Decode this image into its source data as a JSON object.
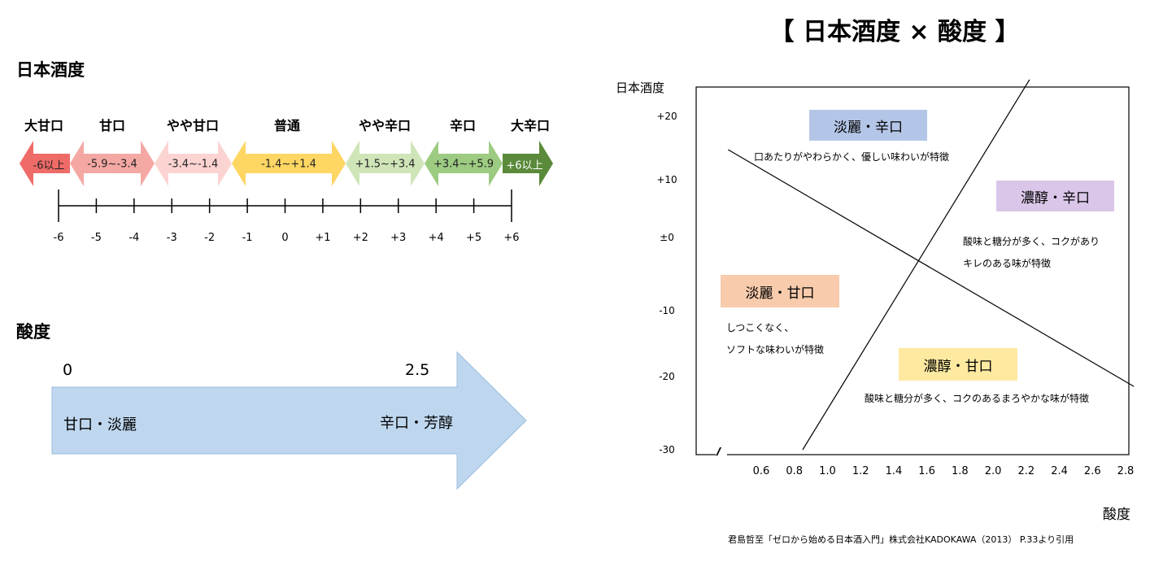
{
  "left": {
    "sake_title": "日本酒度",
    "categories": [
      {
        "label": "大甘口",
        "range": "-6以上",
        "color": "#ee6b67"
      },
      {
        "label": "甘口",
        "range": "-5.9~-3.4",
        "color": "#f4a8a4"
      },
      {
        "label": "やや甘口",
        "range": "-3.4~-1.4",
        "color": "#fbd4d2"
      },
      {
        "label": "普通",
        "range": "-1.4~+1.4",
        "color": "#fdd663"
      },
      {
        "label": "やや辛口",
        "range": "+1.5~+3.4",
        "color": "#cfe5b8"
      },
      {
        "label": "辛口",
        "range": "+3.4~+5.9",
        "color": "#9dcb82"
      },
      {
        "label": "大辛口",
        "range": "+6以上",
        "color": "#5a8a3a"
      }
    ],
    "scale_ticks": [
      "-6",
      "-5",
      "-4",
      "-3",
      "-2",
      "-1",
      "0",
      "+1",
      "+2",
      "+3",
      "+4",
      "+5",
      "+6"
    ],
    "acid_title": "酸度",
    "acid_start": "0",
    "acid_end": "2.5",
    "acid_left_label": "甘口・淡麗",
    "acid_right_label": "辛口・芳醇",
    "acid_color": "#bed7ee"
  },
  "right": {
    "title": "【 日本酒度 × 酸度 】",
    "y_axis_label": "日本酒度",
    "x_axis_label": "酸度",
    "break_mark": "//",
    "citation": "君島哲至「ゼロから始める日本酒入門」株式会社KADOKAWA（2013） P.33より引用",
    "quadrants": [
      {
        "key": "tanrei_karakuchi",
        "label": "淡麗・辛口",
        "color": "#b4c6e7",
        "desc": [
          "口あたりがやわらかく、優しい味わいが特徴"
        ]
      },
      {
        "key": "nojun_karakuchi",
        "label": "濃醇・辛口",
        "color": "#d9c6e8",
        "desc": [
          "酸味と糖分が多く、コクがあり",
          "キレのある味が特徴"
        ]
      },
      {
        "key": "tanrei_amakuchi",
        "label": "淡麗・甘口",
        "color": "#f7cbac",
        "desc": [
          "しつこくなく、",
          "ソフトな味わいが特徴"
        ]
      },
      {
        "key": "nojun_amakuchi",
        "label": "濃醇・甘口",
        "color": "#fde9a0",
        "desc": [
          "酸味と糖分が多く、コクのあるまろやかな味が特徴"
        ]
      }
    ]
  },
  "chart_data": {
    "type": "diagram",
    "xlabel": "酸度",
    "ylabel": "日本酒度",
    "x_ticks": [
      "0.6",
      "0.8",
      "1.0",
      "1.2",
      "1.4",
      "1.6",
      "1.8",
      "2.0",
      "2.2",
      "2.4",
      "2.6",
      "2.8"
    ],
    "y_ticks": [
      "+20",
      "+10",
      "±0",
      "-10",
      "-20",
      "-30"
    ],
    "lines": [
      {
        "points": [
          [
            0.4,
            15.0
          ],
          [
            2.85,
            -20.5
          ]
        ]
      },
      {
        "points": [
          [
            0.85,
            -30.0
          ],
          [
            2.22,
            25.5
          ]
        ]
      }
    ]
  }
}
